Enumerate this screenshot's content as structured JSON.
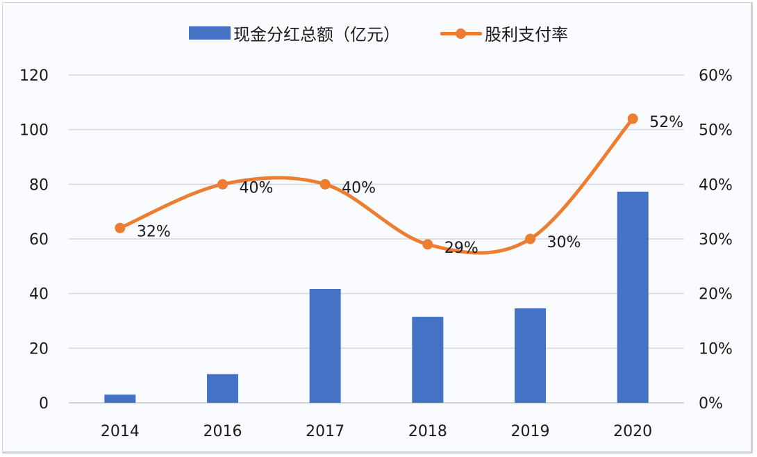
{
  "chart_data": {
    "type": "bar+line",
    "title": "",
    "categories": [
      "2014",
      "2016",
      "2017",
      "2018",
      "2019",
      "2020"
    ],
    "series": [
      {
        "name": "现金分红总额（亿元）",
        "type": "bar",
        "axis": "left",
        "color": "#4472C4",
        "values": [
          3,
          10.5,
          41.7,
          31.5,
          34.6,
          77.3
        ]
      },
      {
        "name": "股利支付率",
        "type": "line",
        "axis": "right",
        "color": "#ED7D31",
        "smooth": true,
        "values": [
          32,
          40,
          40,
          29,
          30,
          52
        ],
        "labels": [
          "32%",
          "40%",
          "40%",
          "29%",
          "30%",
          "52%"
        ]
      }
    ],
    "y_left": {
      "label": "",
      "range": [
        0,
        120
      ],
      "ticks": [
        "0",
        "20",
        "40",
        "60",
        "80",
        "100",
        "120"
      ]
    },
    "y_right": {
      "label": "",
      "range": [
        0,
        60
      ],
      "ticks": [
        "0%",
        "10%",
        "20%",
        "30%",
        "40%",
        "50%",
        "60%"
      ]
    },
    "xlabel": "",
    "grid": true,
    "legend_position": "top"
  },
  "legend": {
    "bar_label": "现金分红总额（亿元）",
    "line_label": "股利支付率"
  }
}
